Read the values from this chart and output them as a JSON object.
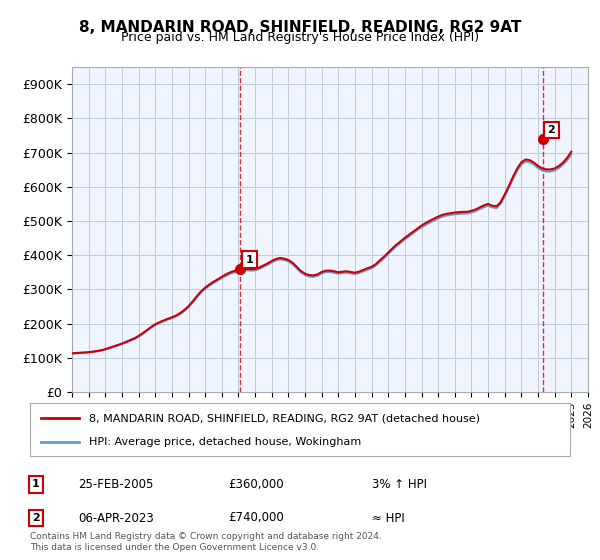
{
  "title": "8, MANDARIN ROAD, SHINFIELD, READING, RG2 9AT",
  "subtitle": "Price paid vs. HM Land Registry's House Price Index (HPI)",
  "ylabel_ticks": [
    "£0",
    "£100K",
    "£200K",
    "£300K",
    "£400K",
    "£500K",
    "£600K",
    "£700K",
    "£800K",
    "£900K"
  ],
  "ytick_values": [
    0,
    100000,
    200000,
    300000,
    400000,
    500000,
    600000,
    700000,
    800000,
    900000
  ],
  "ylim": [
    0,
    950000
  ],
  "background_color": "#f0f4ff",
  "plot_bg_color": "#f0f4ff",
  "grid_color": "#c0c8e0",
  "sale1_date": "25-FEB-2005",
  "sale1_price": 360000,
  "sale1_hpi_rel": "3% ↑ HPI",
  "sale2_date": "06-APR-2023",
  "sale2_price": 740000,
  "sale2_hpi_rel": "≈ HPI",
  "legend_label_red": "8, MANDARIN ROAD, SHINFIELD, READING, RG2 9AT (detached house)",
  "legend_label_blue": "HPI: Average price, detached house, Wokingham",
  "footer": "Contains HM Land Registry data © Crown copyright and database right 2024.\nThis data is licensed under the Open Government Licence v3.0.",
  "red_color": "#cc0000",
  "blue_color": "#6699cc",
  "hpi_years": [
    1995.0,
    1995.25,
    1995.5,
    1995.75,
    1996.0,
    1996.25,
    1996.5,
    1996.75,
    1997.0,
    1997.25,
    1997.5,
    1997.75,
    1998.0,
    1998.25,
    1998.5,
    1998.75,
    1999.0,
    1999.25,
    1999.5,
    1999.75,
    2000.0,
    2000.25,
    2000.5,
    2000.75,
    2001.0,
    2001.25,
    2001.5,
    2001.75,
    2002.0,
    2002.25,
    2002.5,
    2002.75,
    2003.0,
    2003.25,
    2003.5,
    2003.75,
    2004.0,
    2004.25,
    2004.5,
    2004.75,
    2005.0,
    2005.25,
    2005.5,
    2005.75,
    2006.0,
    2006.25,
    2006.5,
    2006.75,
    2007.0,
    2007.25,
    2007.5,
    2007.75,
    2008.0,
    2008.25,
    2008.5,
    2008.75,
    2009.0,
    2009.25,
    2009.5,
    2009.75,
    2010.0,
    2010.25,
    2010.5,
    2010.75,
    2011.0,
    2011.25,
    2011.5,
    2011.75,
    2012.0,
    2012.25,
    2012.5,
    2012.75,
    2013.0,
    2013.25,
    2013.5,
    2013.75,
    2014.0,
    2014.25,
    2014.5,
    2014.75,
    2015.0,
    2015.25,
    2015.5,
    2015.75,
    2016.0,
    2016.25,
    2016.5,
    2016.75,
    2017.0,
    2017.25,
    2017.5,
    2017.75,
    2018.0,
    2018.25,
    2018.5,
    2018.75,
    2019.0,
    2019.25,
    2019.5,
    2019.75,
    2020.0,
    2020.25,
    2020.5,
    2020.75,
    2021.0,
    2021.25,
    2021.5,
    2021.75,
    2022.0,
    2022.25,
    2022.5,
    2022.75,
    2023.0,
    2023.25,
    2023.5,
    2023.75,
    2024.0,
    2024.25,
    2024.5,
    2024.75,
    2025.0
  ],
  "hpi_values": [
    112000,
    113000,
    114000,
    114500,
    115500,
    117000,
    119000,
    121000,
    124000,
    128000,
    132000,
    136000,
    140000,
    145000,
    150000,
    155000,
    162000,
    170000,
    179000,
    188000,
    196000,
    202000,
    207000,
    212000,
    216000,
    221000,
    228000,
    237000,
    248000,
    262000,
    277000,
    291000,
    302000,
    311000,
    319000,
    326000,
    333000,
    340000,
    346000,
    350000,
    352000,
    354000,
    356000,
    355000,
    356000,
    360000,
    366000,
    372000,
    379000,
    385000,
    388000,
    386000,
    382000,
    374000,
    362000,
    350000,
    342000,
    338000,
    337000,
    340000,
    347000,
    351000,
    351000,
    349000,
    346000,
    348000,
    349000,
    347000,
    345000,
    348000,
    353000,
    358000,
    362000,
    370000,
    381000,
    392000,
    404000,
    416000,
    427000,
    437000,
    447000,
    456000,
    465000,
    474000,
    482000,
    489000,
    496000,
    502000,
    508000,
    513000,
    516000,
    518000,
    520000,
    521000,
    522000,
    522000,
    525000,
    529000,
    535000,
    541000,
    545000,
    540000,
    538000,
    550000,
    573000,
    598000,
    624000,
    648000,
    666000,
    674000,
    672000,
    665000,
    655000,
    648000,
    645000,
    645000,
    648000,
    655000,
    665000,
    678000,
    695000
  ],
  "red_years": [
    1995.0,
    1995.25,
    1995.5,
    1995.75,
    1996.0,
    1996.25,
    1996.5,
    1996.75,
    1997.0,
    1997.25,
    1997.5,
    1997.75,
    1998.0,
    1998.25,
    1998.5,
    1998.75,
    1999.0,
    1999.25,
    1999.5,
    1999.75,
    2000.0,
    2000.25,
    2000.5,
    2000.75,
    2001.0,
    2001.25,
    2001.5,
    2001.75,
    2002.0,
    2002.25,
    2002.5,
    2002.75,
    2003.0,
    2003.25,
    2003.5,
    2003.75,
    2004.0,
    2004.25,
    2004.5,
    2004.75,
    2005.0,
    2005.25,
    2005.5,
    2005.75,
    2006.0,
    2006.25,
    2006.5,
    2006.75,
    2007.0,
    2007.25,
    2007.5,
    2007.75,
    2008.0,
    2008.25,
    2008.5,
    2008.75,
    2009.0,
    2009.25,
    2009.5,
    2009.75,
    2010.0,
    2010.25,
    2010.5,
    2010.75,
    2011.0,
    2011.25,
    2011.5,
    2011.75,
    2012.0,
    2012.25,
    2012.5,
    2012.75,
    2013.0,
    2013.25,
    2013.5,
    2013.75,
    2014.0,
    2014.25,
    2014.5,
    2014.75,
    2015.0,
    2015.25,
    2015.5,
    2015.75,
    2016.0,
    2016.25,
    2016.5,
    2016.75,
    2017.0,
    2017.25,
    2017.5,
    2017.75,
    2018.0,
    2018.25,
    2018.5,
    2018.75,
    2019.0,
    2019.25,
    2019.5,
    2019.75,
    2020.0,
    2020.25,
    2020.5,
    2020.75,
    2021.0,
    2021.25,
    2021.5,
    2021.75,
    2022.0,
    2022.25,
    2022.5,
    2022.75,
    2023.0,
    2023.25,
    2023.5,
    2023.75,
    2024.0,
    2024.25,
    2024.5,
    2024.75,
    2025.0
  ],
  "red_values": [
    113000,
    114000,
    115000,
    115500,
    116500,
    118000,
    120000,
    122000,
    125500,
    129500,
    133500,
    137500,
    141500,
    146500,
    152000,
    157000,
    164000,
    172000,
    181000,
    190000,
    198000,
    204000,
    209000,
    214000,
    218500,
    223500,
    231000,
    240000,
    251000,
    265000,
    280000,
    294000,
    305000,
    314500,
    322500,
    329500,
    337000,
    344000,
    350000,
    354000,
    356000,
    358000,
    360000,
    359000,
    360000,
    364000,
    370000,
    376000,
    383000,
    389000,
    392000,
    390000,
    386000,
    378000,
    366000,
    354000,
    346000,
    342000,
    341000,
    344000,
    351000,
    355000,
    355000,
    353000,
    350000,
    352000,
    353000,
    351000,
    349000,
    352000,
    357000,
    362000,
    366000,
    374000,
    385000,
    396000,
    408000,
    420000,
    431000,
    441000,
    451000,
    460000,
    469000,
    478000,
    487000,
    494000,
    501000,
    507000,
    513000,
    518000,
    521000,
    523000,
    525000,
    526000,
    527000,
    527000,
    530000,
    534000,
    540000,
    546000,
    550000,
    545000,
    543000,
    555000,
    578000,
    603000,
    630000,
    654000,
    672000,
    680000,
    678000,
    671000,
    661000,
    654000,
    651000,
    651000,
    654000,
    661000,
    671000,
    685000,
    703000
  ],
  "sale1_x": 2005.12,
  "sale2_x": 2023.27,
  "xmin": 1995,
  "xmax": 2026
}
